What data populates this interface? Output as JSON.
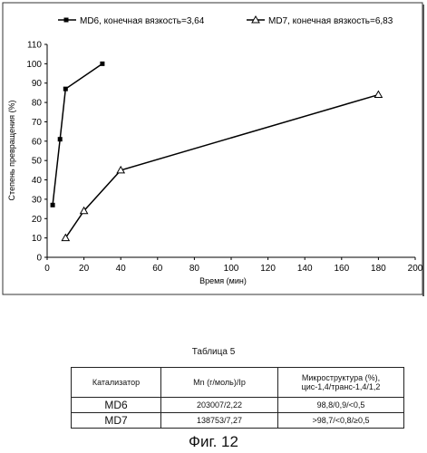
{
  "chart_data": {
    "type": "line",
    "title": "",
    "xlabel": "Время (мин)",
    "ylabel": "Степень превращения (%)",
    "xlim": [
      0,
      200
    ],
    "ylim": [
      0,
      110
    ],
    "x_ticks": [
      "0",
      "20",
      "40",
      "60",
      "80",
      "100",
      "120",
      "140",
      "160",
      "180",
      "200"
    ],
    "y_ticks": [
      "0",
      "10",
      "20",
      "30",
      "40",
      "50",
      "60",
      "70",
      "80",
      "90",
      "100",
      "110"
    ],
    "grid": false,
    "legend_position": "top",
    "series": [
      {
        "name": "MD6, конечная вязкость=3,64",
        "marker": "square",
        "color": "#000000",
        "x": [
          3,
          7,
          10,
          30
        ],
        "y": [
          27,
          61,
          87,
          100
        ]
      },
      {
        "name": "MD7, конечная вязкость=6,83",
        "marker": "triangle",
        "color": "#000000",
        "x": [
          10,
          20,
          40,
          180
        ],
        "y": [
          10,
          24,
          45,
          84
        ]
      }
    ]
  },
  "table": {
    "caption": "Таблица 5",
    "headers": [
      "Катализатор",
      "Mn (г/моль)/Ip",
      "Микроструктура (%),\nцис-1,4/транс-1,4/1,2"
    ],
    "rows": [
      {
        "name": "MD6",
        "mn": "203007/2,22",
        "micro": "98,8/0,9/<0,5"
      },
      {
        "name": "MD7",
        "mn": "138753/7,27",
        "micro": ">98,7/<0,8/≥0,5"
      }
    ]
  },
  "figure_caption": "Фиг. 12"
}
